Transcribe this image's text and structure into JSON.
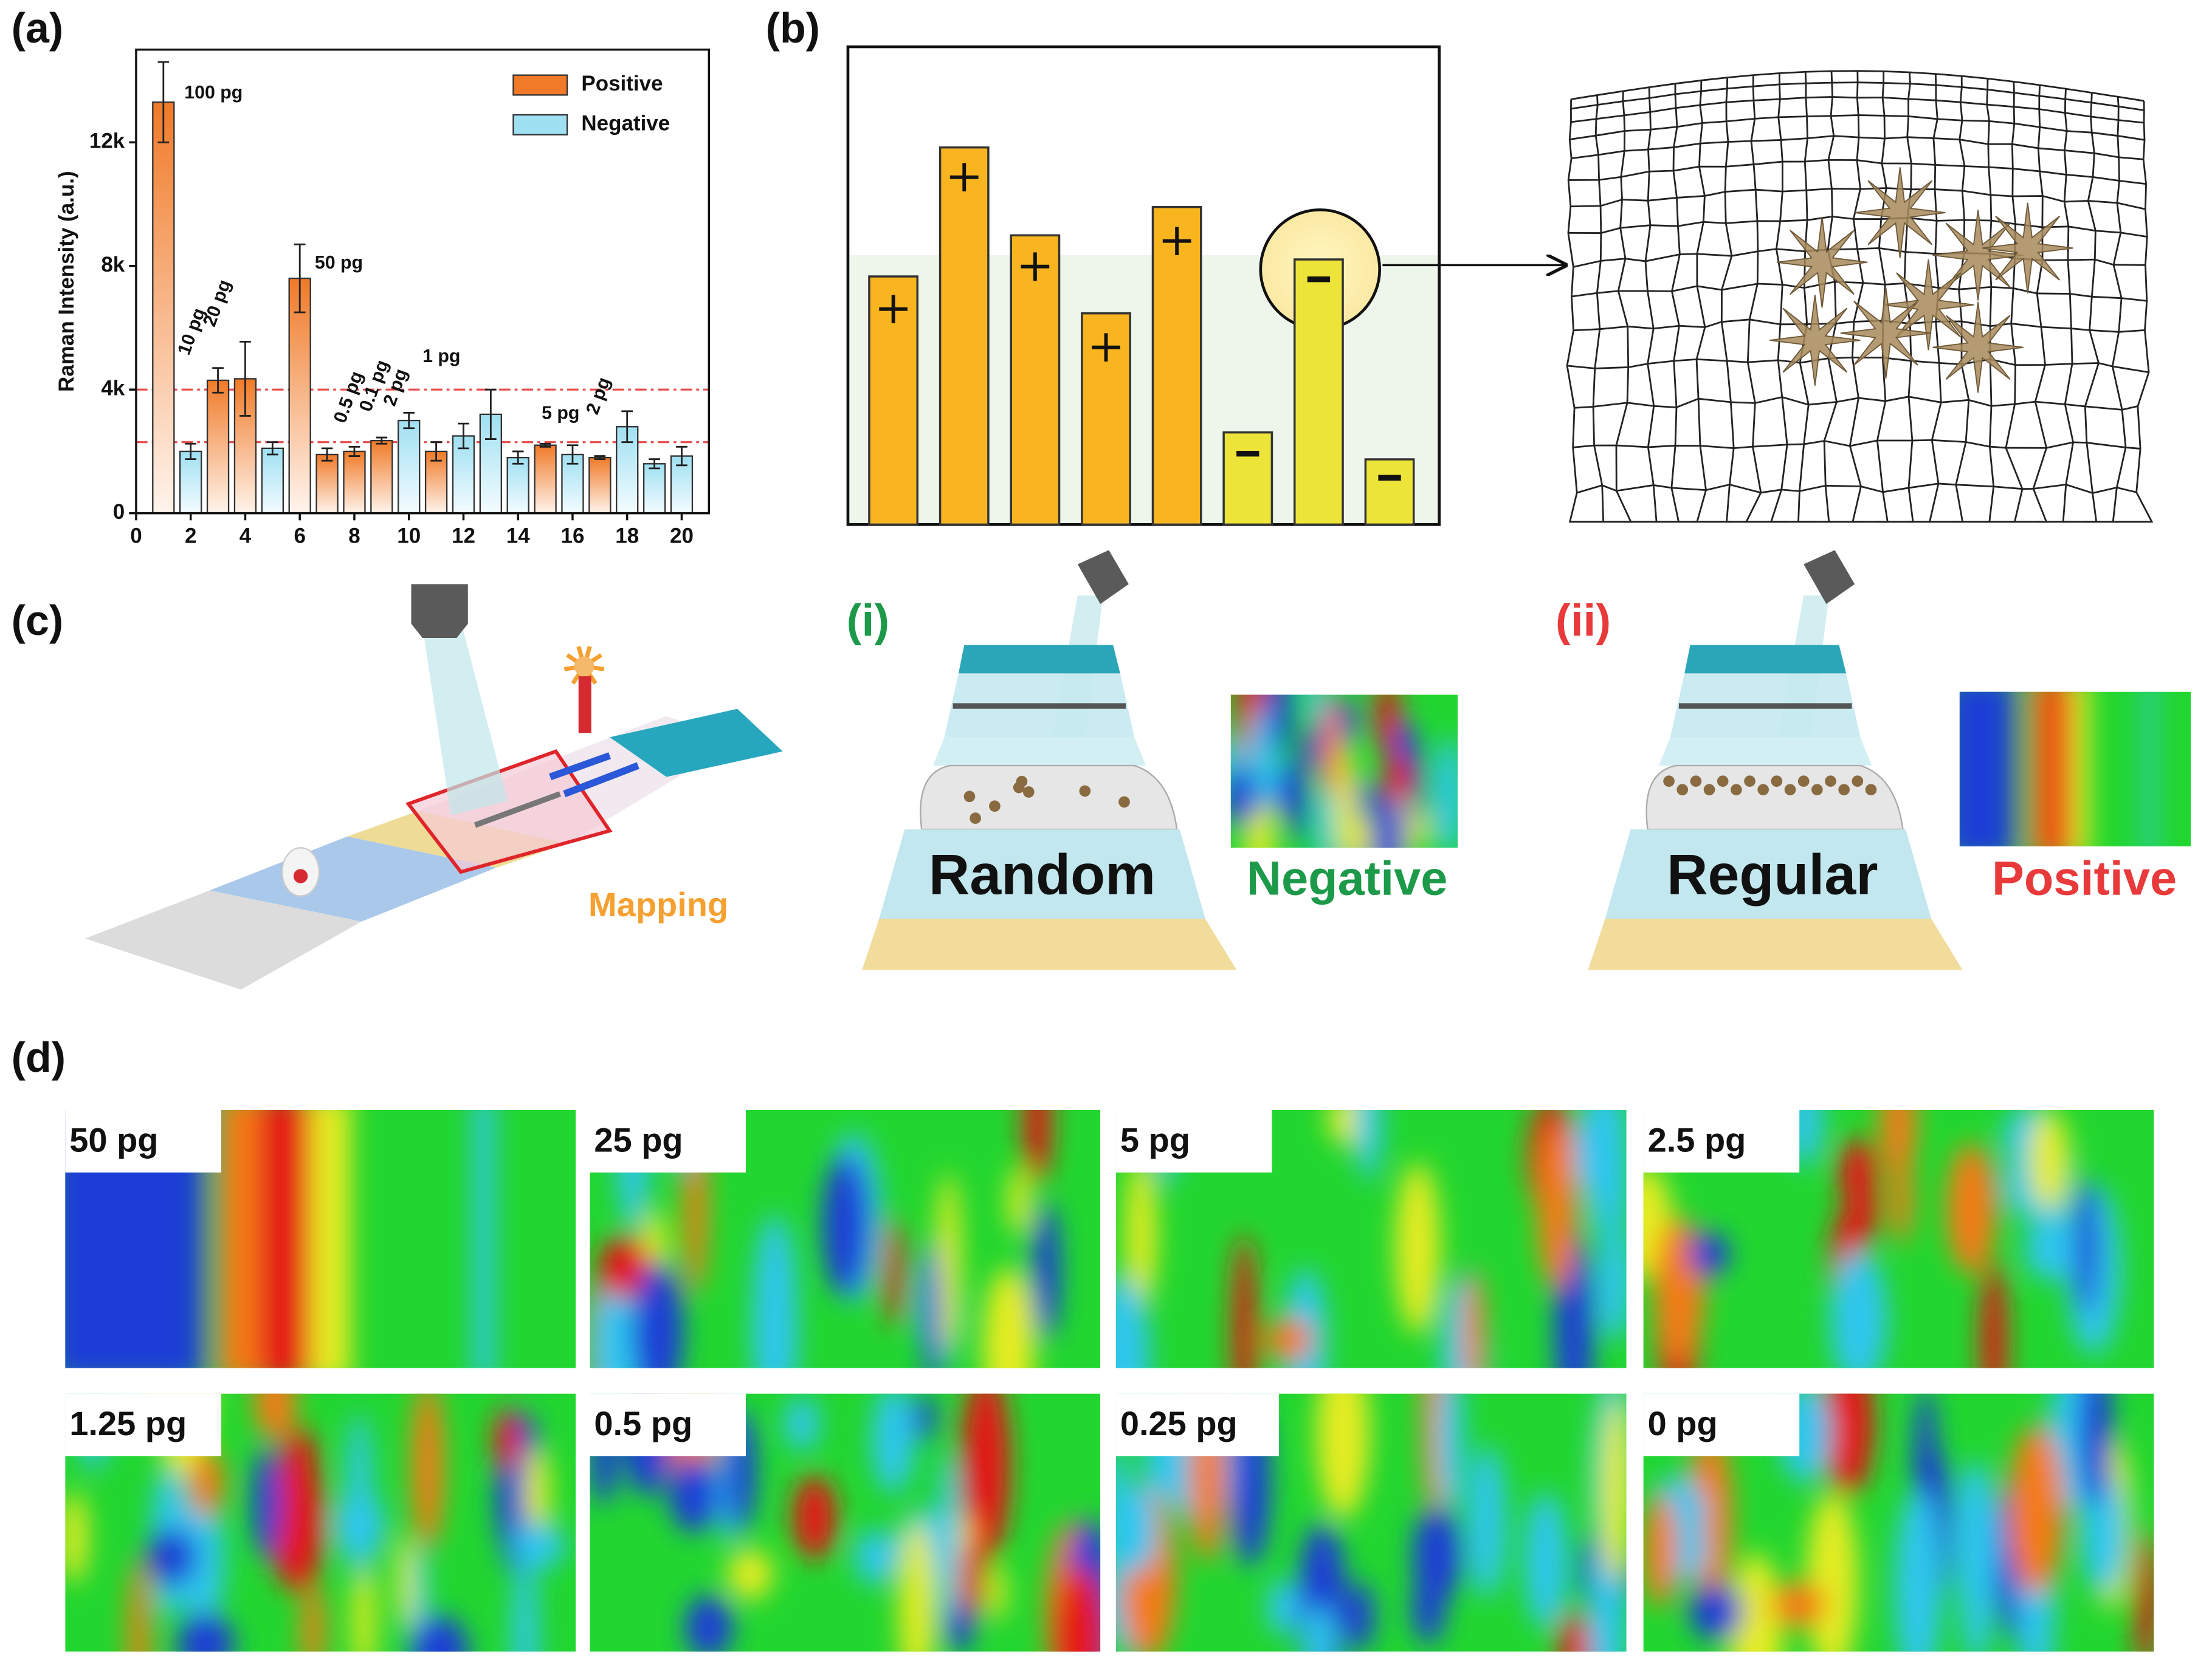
{
  "panels": [
    "(a)",
    "(b)",
    "(c)",
    "(d)"
  ],
  "chart_data": {
    "type": "bar",
    "ylabel": "Raman Intensity (a.u.)",
    "x": [
      1,
      2,
      3,
      4,
      5,
      6,
      7,
      8,
      9,
      10,
      11,
      12,
      13,
      14,
      15,
      16,
      17,
      18,
      19,
      20
    ],
    "series": [
      {
        "name": "Positive",
        "color": "#f07a28",
        "values": [
          13300,
          null,
          4300,
          4350,
          null,
          7600,
          1900,
          2000,
          2350,
          null,
          2000,
          null,
          null,
          null,
          2200,
          null,
          1800,
          null,
          null,
          null
        ],
        "errors": [
          1300,
          null,
          400,
          1200,
          null,
          1100,
          200,
          150,
          100,
          null,
          300,
          null,
          null,
          null,
          50,
          null,
          50,
          null,
          null,
          null
        ]
      },
      {
        "name": "Negative",
        "color": "#9fe0f2",
        "values": [
          null,
          2000,
          null,
          null,
          2100,
          null,
          null,
          null,
          null,
          3000,
          null,
          2500,
          3200,
          1800,
          null,
          1900,
          null,
          2800,
          1600,
          1850
        ],
        "errors": [
          null,
          250,
          null,
          null,
          200,
          null,
          null,
          null,
          null,
          250,
          null,
          400,
          800,
          200,
          null,
          300,
          null,
          500,
          150,
          300
        ]
      }
    ],
    "xlim": [
      0,
      21
    ],
    "xticks": [
      0,
      2,
      4,
      6,
      8,
      10,
      12,
      14,
      16,
      18,
      20
    ],
    "ylim": [
      0,
      15000
    ],
    "yticks": [
      0,
      {
        "value": 4000,
        "label": "4k"
      },
      {
        "value": 8000,
        "label": "8k"
      },
      {
        "value": 12000,
        "label": "12k"
      }
    ],
    "reference_lines": [
      4000,
      2300
    ],
    "reference_line_color": "#e84a4a",
    "legend": "upper right",
    "annotations": [
      "100 pg",
      "10 pg",
      "20 pg",
      "50 pg",
      "0.5 pg",
      "0.1 pg",
      "2 pg",
      "1 pg",
      "5 pg",
      "2 pg"
    ]
  },
  "panel_c": {
    "mapping": "Mapping",
    "i": "(i)",
    "ii": "(ii)",
    "random": "Random",
    "regular": "Regular",
    "negative": "Negative",
    "positive": "Positive"
  },
  "panel_d": {
    "labels": [
      "50 pg",
      "25 pg",
      "5 pg",
      "2.5 pg",
      "1.25 pg",
      "0.5 pg",
      "0.25 pg",
      "0 pg"
    ]
  }
}
